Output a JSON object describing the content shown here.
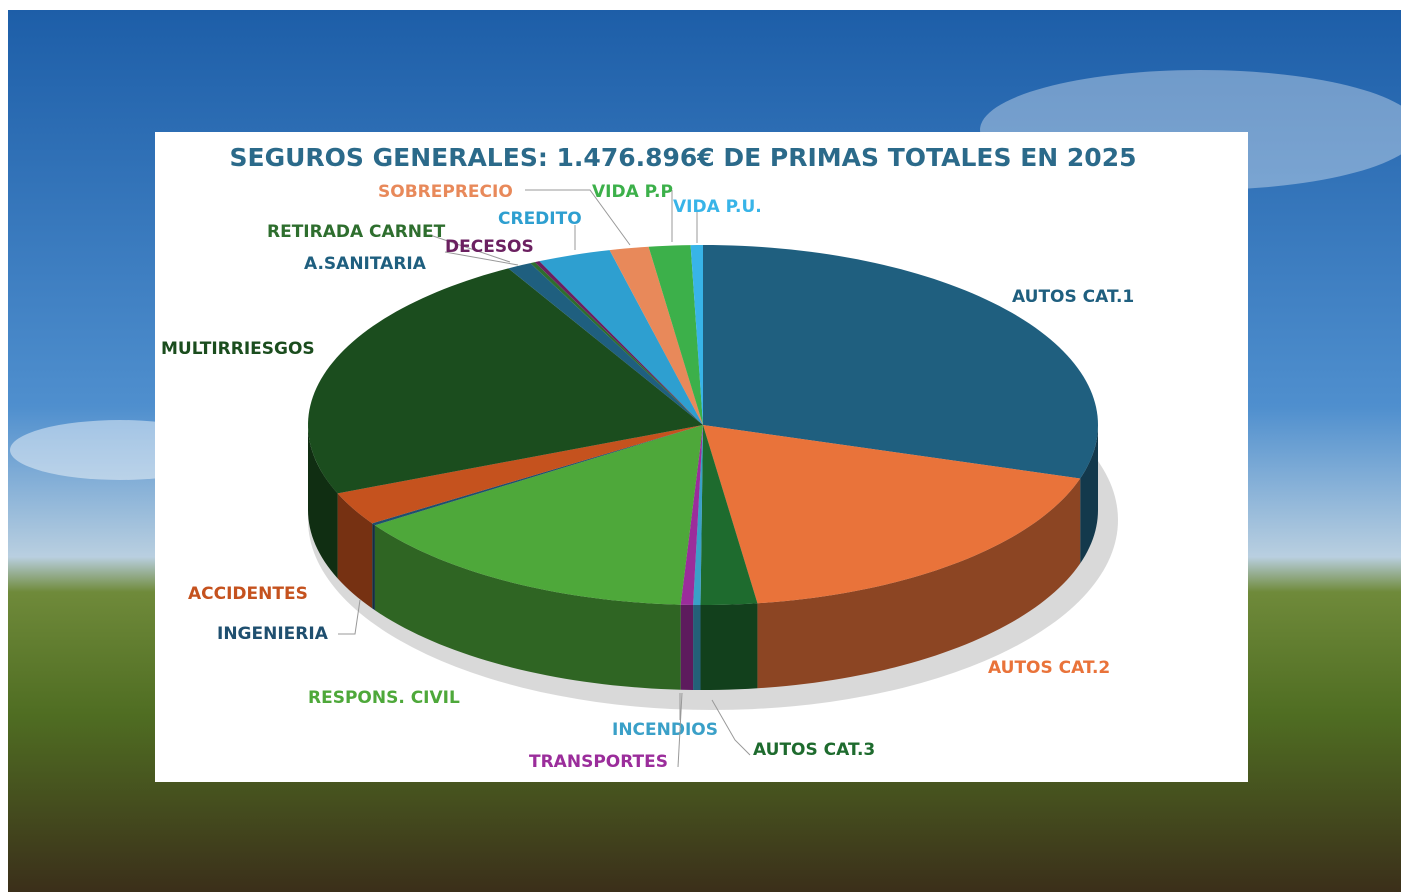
{
  "chart_data": {
    "type": "pie",
    "title": "SEGUROS GENERALES: 1.476.896€ DE PRIMAS TOTALES EN 2025",
    "categories": [
      "AUTOS CAT.1",
      "AUTOS CAT.2",
      "AUTOS CAT.3",
      "INCENDIOS",
      "TRANSPORTES",
      "RESPONS. CIVIL",
      "INGENIERIA",
      "ACCIDENTES",
      "MULTIRRIESGOS",
      "A.SANITARIA",
      "RETIRADA CARNET",
      "DECESOS",
      "CREDITO",
      "SOBREPRECIO",
      "VIDA P.P",
      "VIDA P.U."
    ],
    "values": [
      29.8,
      18,
      2.3,
      0.3,
      0.5,
      14.7,
      0.2,
      3,
      23,
      1,
      0.2,
      0.2,
      3,
      1.6,
      1.7,
      0.5
    ],
    "colors": [
      "#1f5f7f",
      "#e9733a",
      "#1e6b2e",
      "#3aa0c8",
      "#9b2d9b",
      "#4ea83a",
      "#1f4f6f",
      "#c5521e",
      "#1b4d1e",
      "#1f5f7f",
      "#2e6e2e",
      "#6b2060",
      "#2e9fd0",
      "#e8895a",
      "#3cb04a",
      "#38b4e8"
    ]
  }
}
